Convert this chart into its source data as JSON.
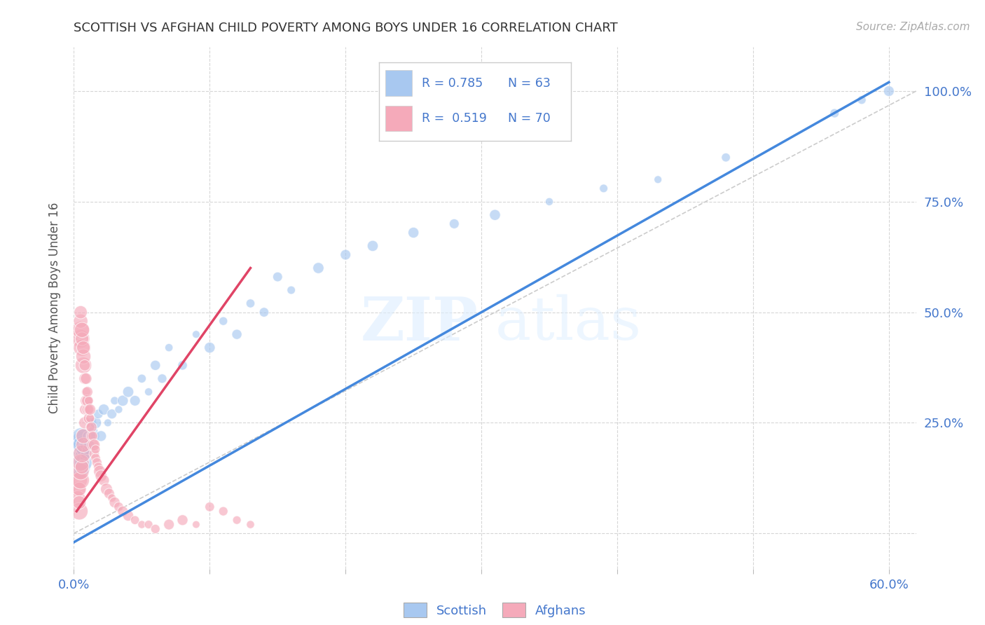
{
  "title": "SCOTTISH VS AFGHAN CHILD POVERTY AMONG BOYS UNDER 16 CORRELATION CHART",
  "source": "Source: ZipAtlas.com",
  "ylabel": "Child Poverty Among Boys Under 16",
  "xlim": [
    0.0,
    0.62
  ],
  "ylim": [
    -0.08,
    1.1
  ],
  "blue_color": "#a8c8f0",
  "pink_color": "#f5aaba",
  "blue_line_color": "#4488dd",
  "pink_line_color": "#e04466",
  "axis_color": "#4477cc",
  "grid_color": "#cccccc",
  "text_dark": "#222222",
  "legend_box_color": "#4477cc",
  "scatter_blue_x": [
    0.002,
    0.003,
    0.004,
    0.004,
    0.005,
    0.005,
    0.005,
    0.005,
    0.005,
    0.006,
    0.006,
    0.006,
    0.007,
    0.007,
    0.007,
    0.008,
    0.008,
    0.009,
    0.01,
    0.01,
    0.011,
    0.012,
    0.013,
    0.014,
    0.015,
    0.016,
    0.018,
    0.02,
    0.022,
    0.025,
    0.028,
    0.03,
    0.033,
    0.036,
    0.04,
    0.045,
    0.05,
    0.055,
    0.06,
    0.065,
    0.07,
    0.08,
    0.09,
    0.1,
    0.11,
    0.12,
    0.13,
    0.14,
    0.15,
    0.16,
    0.18,
    0.2,
    0.22,
    0.25,
    0.28,
    0.31,
    0.35,
    0.39,
    0.43,
    0.48,
    0.56,
    0.58,
    0.6
  ],
  "scatter_blue_y": [
    0.15,
    0.18,
    0.16,
    0.2,
    0.14,
    0.17,
    0.19,
    0.21,
    0.22,
    0.15,
    0.18,
    0.2,
    0.16,
    0.19,
    0.22,
    0.17,
    0.2,
    0.18,
    0.19,
    0.22,
    0.2,
    0.22,
    0.25,
    0.23,
    0.22,
    0.25,
    0.27,
    0.22,
    0.28,
    0.25,
    0.27,
    0.3,
    0.28,
    0.3,
    0.32,
    0.3,
    0.35,
    0.32,
    0.38,
    0.35,
    0.42,
    0.38,
    0.45,
    0.42,
    0.48,
    0.45,
    0.52,
    0.5,
    0.58,
    0.55,
    0.6,
    0.63,
    0.65,
    0.68,
    0.7,
    0.72,
    0.75,
    0.78,
    0.8,
    0.85,
    0.95,
    0.98,
    1.0
  ],
  "scatter_pink_x": [
    0.003,
    0.003,
    0.004,
    0.004,
    0.004,
    0.004,
    0.005,
    0.005,
    0.005,
    0.005,
    0.005,
    0.005,
    0.005,
    0.006,
    0.006,
    0.006,
    0.006,
    0.006,
    0.007,
    0.007,
    0.007,
    0.007,
    0.007,
    0.008,
    0.008,
    0.008,
    0.008,
    0.009,
    0.009,
    0.009,
    0.01,
    0.01,
    0.01,
    0.011,
    0.011,
    0.011,
    0.012,
    0.012,
    0.012,
    0.013,
    0.013,
    0.014,
    0.014,
    0.015,
    0.015,
    0.016,
    0.016,
    0.017,
    0.018,
    0.019,
    0.02,
    0.022,
    0.024,
    0.026,
    0.028,
    0.03,
    0.033,
    0.036,
    0.04,
    0.045,
    0.05,
    0.055,
    0.06,
    0.07,
    0.08,
    0.09,
    0.1,
    0.11,
    0.12,
    0.13
  ],
  "scatter_pink_y": [
    0.1,
    0.08,
    0.12,
    0.1,
    0.05,
    0.07,
    0.44,
    0.46,
    0.48,
    0.5,
    0.12,
    0.14,
    0.16,
    0.42,
    0.44,
    0.46,
    0.15,
    0.18,
    0.38,
    0.4,
    0.42,
    0.2,
    0.22,
    0.35,
    0.38,
    0.25,
    0.28,
    0.32,
    0.35,
    0.3,
    0.28,
    0.3,
    0.32,
    0.26,
    0.28,
    0.3,
    0.24,
    0.26,
    0.28,
    0.22,
    0.24,
    0.2,
    0.22,
    0.18,
    0.2,
    0.17,
    0.19,
    0.16,
    0.15,
    0.14,
    0.13,
    0.12,
    0.1,
    0.09,
    0.08,
    0.07,
    0.06,
    0.05,
    0.04,
    0.03,
    0.02,
    0.02,
    0.01,
    0.02,
    0.03,
    0.02,
    0.06,
    0.05,
    0.03,
    0.02
  ],
  "blue_line_x": [
    0.0,
    0.6
  ],
  "blue_line_y": [
    -0.02,
    1.02
  ],
  "pink_line_x": [
    0.002,
    0.13
  ],
  "pink_line_y": [
    0.05,
    0.6
  ],
  "ref_line_x": [
    0.0,
    0.62
  ],
  "ref_line_y": [
    0.0,
    1.0
  ]
}
